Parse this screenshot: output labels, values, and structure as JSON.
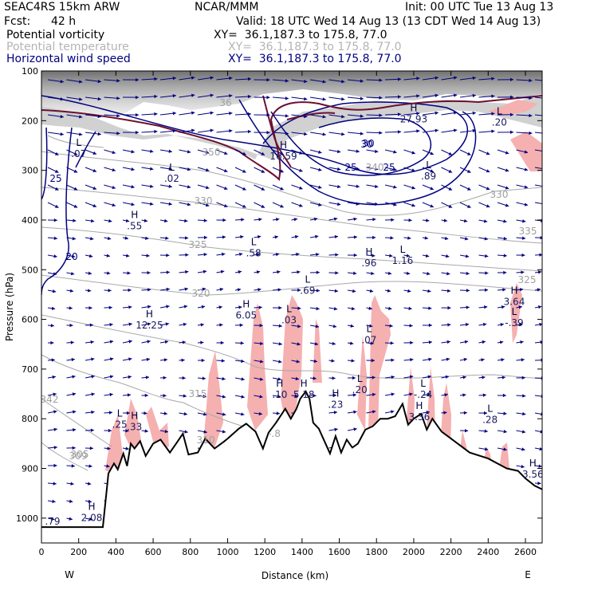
{
  "header": {
    "model": "SEAC4RS 15km ARW",
    "org": "NCAR/MMM",
    "init": "Init: 00 UTC Tue 13 Aug 13",
    "fcst_label": "Fcst:",
    "fcst_value": "42 h",
    "valid": "Valid: 18 UTC Wed 14 Aug 13 (13 CDT Wed 14 Aug 13)",
    "fields": [
      {
        "name": "Potential vorticity",
        "xy": "XY=  36.1,187.3 to 175.8, 77.0",
        "color": "#000000"
      },
      {
        "name": "Potential temperature",
        "xy": "XY=  36.1,187.3 to 175.8, 77.0",
        "color": "#b4b4b4"
      },
      {
        "name": "Horizontal wind speed",
        "xy": "XY=  36.1,187.3 to 175.8, 77.0",
        "color": "#000080"
      }
    ]
  },
  "colors": {
    "pv_contour": "#6b1030",
    "theta_contour": "#a0a0a0",
    "wind_contour": "#000080",
    "vector": "#000080",
    "terrain": "#000000",
    "cloud_pink": "#f5b0b0",
    "pv_shade": "#7a7a7a"
  },
  "chart_data": {
    "type": "cross-section",
    "xlabel": "Distance (km)",
    "ylabel": "Pressure (hPa)",
    "xlim": [
      0,
      2690
    ],
    "ylim": [
      1050,
      100
    ],
    "x_ticks": [
      0,
      200,
      400,
      600,
      800,
      1000,
      1200,
      1400,
      1600,
      1800,
      2000,
      2200,
      2400,
      2600
    ],
    "y_ticks": [
      100,
      200,
      300,
      400,
      500,
      600,
      700,
      800,
      900,
      1000
    ],
    "x_end_labels": {
      "left": "W",
      "right": "E"
    },
    "terrain_pressure": [
      [
        0,
        1018
      ],
      [
        300,
        1018
      ],
      [
        330,
        1018
      ],
      [
        360,
        910
      ],
      [
        390,
        890
      ],
      [
        410,
        902
      ],
      [
        440,
        870
      ],
      [
        460,
        895
      ],
      [
        480,
        850
      ],
      [
        500,
        860
      ],
      [
        530,
        845
      ],
      [
        560,
        875
      ],
      [
        600,
        850
      ],
      [
        640,
        842
      ],
      [
        690,
        868
      ],
      [
        720,
        852
      ],
      [
        760,
        830
      ],
      [
        790,
        872
      ],
      [
        840,
        868
      ],
      [
        880,
        840
      ],
      [
        930,
        860
      ],
      [
        980,
        846
      ],
      [
        1000,
        840
      ],
      [
        1060,
        820
      ],
      [
        1100,
        810
      ],
      [
        1150,
        826
      ],
      [
        1190,
        860
      ],
      [
        1220,
        828
      ],
      [
        1260,
        808
      ],
      [
        1310,
        780
      ],
      [
        1340,
        800
      ],
      [
        1370,
        780
      ],
      [
        1390,
        760
      ],
      [
        1420,
        745
      ],
      [
        1440,
        760
      ],
      [
        1460,
        808
      ],
      [
        1490,
        820
      ],
      [
        1520,
        845
      ],
      [
        1550,
        870
      ],
      [
        1580,
        835
      ],
      [
        1610,
        868
      ],
      [
        1640,
        842
      ],
      [
        1670,
        858
      ],
      [
        1700,
        850
      ],
      [
        1740,
        822
      ],
      [
        1780,
        815
      ],
      [
        1820,
        800
      ],
      [
        1860,
        800
      ],
      [
        1900,
        795
      ],
      [
        1940,
        770
      ],
      [
        1970,
        812
      ],
      [
        2000,
        800
      ],
      [
        2040,
        790
      ],
      [
        2070,
        822
      ],
      [
        2100,
        800
      ],
      [
        2150,
        826
      ],
      [
        2200,
        840
      ],
      [
        2300,
        868
      ],
      [
        2400,
        880
      ],
      [
        2500,
        900
      ],
      [
        2560,
        905
      ],
      [
        2600,
        920
      ],
      [
        2650,
        935
      ],
      [
        2690,
        942
      ]
    ],
    "labels": [
      {
        "kind": "H",
        "value": "16.59",
        "x": 1300,
        "p": 275
      },
      {
        "kind": "L",
        "value": ".07",
        "x": 200,
        "p": 270
      },
      {
        "kind": "L",
        "value": ".02",
        "x": 700,
        "p": 320
      },
      {
        "kind": "H",
        "value": ".55",
        "x": 500,
        "p": 415
      },
      {
        "kind": "L",
        "value": ".58",
        "x": 1140,
        "p": 470
      },
      {
        "kind": "L",
        "value": ".69",
        "x": 1430,
        "p": 545
      },
      {
        "kind": "H",
        "value": ".96",
        "x": 1760,
        "p": 490
      },
      {
        "kind": "L",
        "value": "1.16",
        "x": 1940,
        "p": 485
      },
      {
        "kind": "H",
        "value": "27.93",
        "x": 2000,
        "p": 200
      },
      {
        "kind": "L",
        "value": ".20",
        "x": 2460,
        "p": 207
      },
      {
        "kind": "L",
        "value": ".89",
        "x": 2080,
        "p": 315
      },
      {
        "kind": "H",
        "value": "12.25",
        "x": 580,
        "p": 615
      },
      {
        "kind": "H",
        "value": "6.05",
        "x": 1100,
        "p": 595
      },
      {
        "kind": "L",
        "value": ".03",
        "x": 1330,
        "p": 605
      },
      {
        "kind": "L",
        "value": ".07",
        "x": 1760,
        "p": 645
      },
      {
        "kind": "H",
        "value": "3.64",
        "x": 2540,
        "p": 568
      },
      {
        "kind": "L",
        "value": "-.39",
        "x": 2540,
        "p": 610
      },
      {
        "kind": "H",
        "value": ".10",
        "x": 1280,
        "p": 755
      },
      {
        "kind": "H",
        "value": "5.18",
        "x": 1410,
        "p": 755
      },
      {
        "kind": "H",
        "value": ".23",
        "x": 1580,
        "p": 775
      },
      {
        "kind": "L",
        "value": ".20",
        "x": 1710,
        "p": 745
      },
      {
        "kind": "L",
        "value": "-.24",
        "x": 2050,
        "p": 755
      },
      {
        "kind": "H",
        "value": "3.36",
        "x": 2030,
        "p": 800
      },
      {
        "kind": "L",
        "value": ".28",
        "x": 2410,
        "p": 805
      },
      {
        "kind": "L",
        "value": ".25",
        "x": 420,
        "p": 815
      },
      {
        "kind": "H",
        "value": ".33",
        "x": 500,
        "p": 820
      },
      {
        "kind": "H",
        "value": "3.56",
        "x": 2640,
        "p": 915
      },
      {
        "kind": "H",
        "value": "2.08",
        "x": 270,
        "p": 1003
      },
      {
        "kind": "",
        "value": ".79",
        "x": 60,
        "p": 1010
      }
    ],
    "wind_contour_labels": [
      "25",
      "30",
      "25",
      "25",
      "20",
      "30"
    ],
    "theta_labels": [
      "330",
      "325",
      "320",
      "315",
      "310",
      "305",
      "340",
      "350",
      "330",
      "335",
      "325",
      "342",
      "309",
      "36",
      "-.8"
    ]
  }
}
